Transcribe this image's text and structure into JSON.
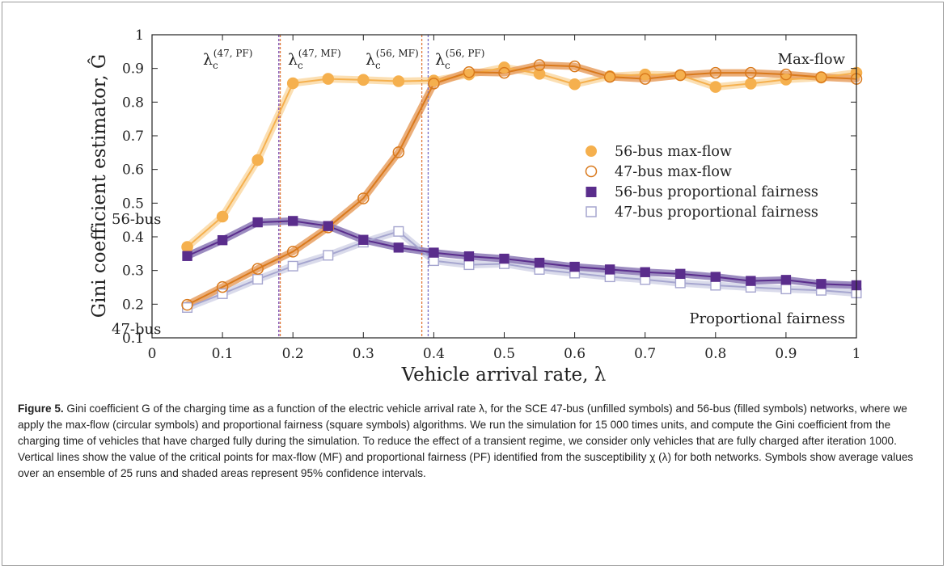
{
  "figure": {
    "caption_label": "Figure 5.",
    "caption_text": " Gini coefficient G of the charging time as a function of the electric vehicle arrival rate λ, for the SCE 47-bus (unfilled symbols) and 56-bus (filled symbols) networks, where we apply the max-flow (circular symbols) and proportional fairness (square symbols) algorithms. We run the simulation for 15 000 times units, and compute the Gini coefficient from the charging time of vehicles that have charged fully during the simulation. To reduce the effect of a transient regime, we consider only vehicles that are fully charged after iteration 1000. Vertical lines show the value of the critical points for max-flow (MF) and proportional fairness (PF) identified from the susceptibility χ (λ) for both networks. Symbols show average values over an ensemble of 25 runs and shaded areas represent 95% confidence intervals."
  },
  "chart_data": {
    "type": "line",
    "xlabel": "Vehicle arrival rate, λ",
    "ylabel": "Gini coefficient estimator, Ĝ",
    "xlim": [
      0,
      1
    ],
    "ylim": [
      0.1,
      1
    ],
    "xticks": [
      "0",
      "0.1",
      "0.2",
      "0.3",
      "0.4",
      "0.5",
      "0.6",
      "0.7",
      "0.8",
      "0.9",
      "1"
    ],
    "yticks": [
      "0.1",
      "0.2",
      "0.3",
      "0.4",
      "0.5",
      "0.6",
      "0.7",
      "0.8",
      "0.9",
      "1"
    ],
    "grid": false,
    "legend_position": "center-right",
    "x": [
      0.05,
      0.1,
      0.15,
      0.2,
      0.25,
      0.3,
      0.35,
      0.4,
      0.45,
      0.5,
      0.55,
      0.6,
      0.65,
      0.7,
      0.75,
      0.8,
      0.85,
      0.9,
      0.95,
      1.0
    ],
    "series": [
      {
        "name": "56-bus max-flow",
        "marker": "circle-filled",
        "color": "#f5b04e",
        "band_color": "#fad9a6",
        "values": [
          0.37,
          0.46,
          0.628,
          0.856,
          0.869,
          0.866,
          0.862,
          0.864,
          0.882,
          0.903,
          0.884,
          0.853,
          0.877,
          0.882,
          0.88,
          0.845,
          0.855,
          0.867,
          0.873,
          0.887
        ]
      },
      {
        "name": "47-bus max-flow",
        "marker": "circle-open",
        "color": "#d9791c",
        "band_color": "#e8a062",
        "values": [
          0.198,
          0.251,
          0.305,
          0.356,
          0.428,
          0.514,
          0.651,
          0.855,
          0.889,
          0.887,
          0.91,
          0.906,
          0.875,
          0.869,
          0.88,
          0.887,
          0.887,
          0.882,
          0.874,
          0.869
        ]
      },
      {
        "name": "56-bus proportional fairness",
        "marker": "square-filled",
        "color": "#5a2d8c",
        "band_color": "#8b78b5",
        "values": [
          0.343,
          0.39,
          0.443,
          0.447,
          0.432,
          0.391,
          0.368,
          0.353,
          0.342,
          0.335,
          0.323,
          0.311,
          0.303,
          0.295,
          0.29,
          0.281,
          0.269,
          0.272,
          0.26,
          0.256
        ]
      },
      {
        "name": "47-bus proportional fairness",
        "marker": "square-open",
        "color": "#a6a6cf",
        "band_color": "#d3d5e8",
        "values": [
          0.19,
          0.231,
          0.274,
          0.313,
          0.345,
          0.384,
          0.416,
          0.329,
          0.317,
          0.32,
          0.303,
          0.292,
          0.281,
          0.273,
          0.263,
          0.256,
          0.25,
          0.245,
          0.241,
          0.233
        ]
      }
    ],
    "vlines": [
      {
        "x": 0.18,
        "color": "#7a4bb3"
      },
      {
        "x": 0.182,
        "color": "#e07a3a"
      },
      {
        "x": 0.383,
        "color": "#e07a3a"
      },
      {
        "x": 0.392,
        "color": "#7a6fc7"
      }
    ],
    "critical_labels": [
      {
        "base": "λ",
        "sub": "c",
        "sup": "(47, PF)"
      },
      {
        "base": "λ",
        "sub": "c",
        "sup": "(47, MF)"
      },
      {
        "base": "λ",
        "sub": "c",
        "sup": "(56, MF)"
      },
      {
        "base": "λ",
        "sub": "c",
        "sup": "(56, PF)"
      }
    ],
    "annotations": {
      "max_flow": "Max-flow",
      "proportional_fairness": "Proportional fairness",
      "bus56": "56-bus",
      "bus47": "47-bus"
    }
  }
}
